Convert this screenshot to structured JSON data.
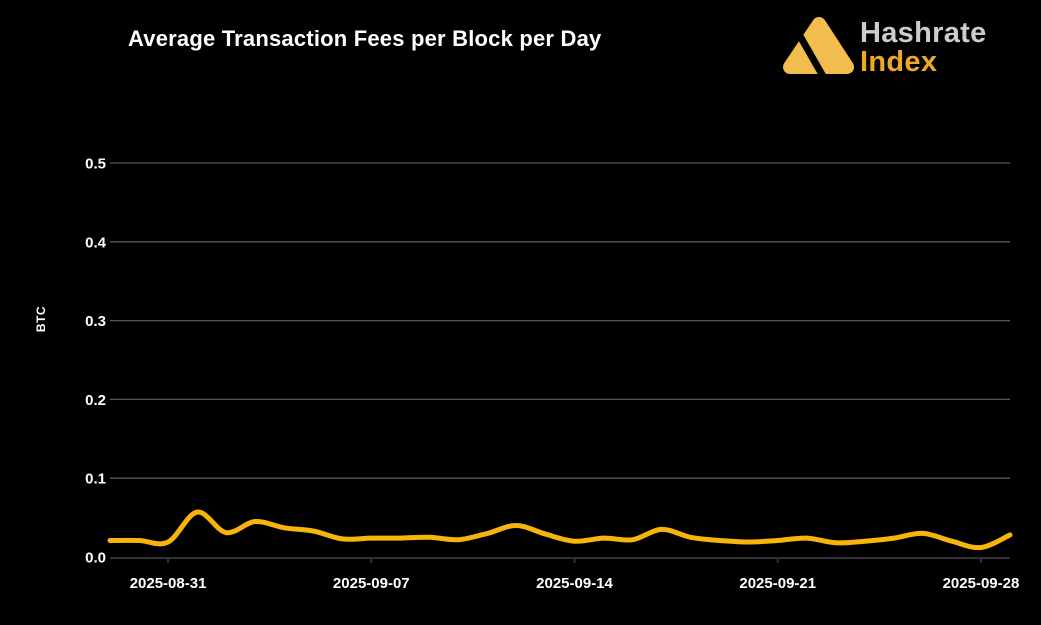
{
  "header": {
    "logo": {
      "brand_top": "Hashrate",
      "brand_bottom": "Index",
      "mark_color": "#f3bc4f",
      "brand_top_color": "#cdcdcd",
      "brand_bottom_color": "#eea826"
    }
  },
  "chart_data": {
    "type": "line",
    "title": "Average Transaction Fees per Block per Day",
    "xlabel": "",
    "ylabel": "BTC",
    "x": [
      "2025-08-29",
      "2025-08-30",
      "2025-08-31",
      "2025-09-01",
      "2025-09-02",
      "2025-09-03",
      "2025-09-04",
      "2025-09-05",
      "2025-09-06",
      "2025-09-07",
      "2025-09-08",
      "2025-09-09",
      "2025-09-10",
      "2025-09-11",
      "2025-09-12",
      "2025-09-13",
      "2025-09-14",
      "2025-09-15",
      "2025-09-16",
      "2025-09-17",
      "2025-09-18",
      "2025-09-19",
      "2025-09-20",
      "2025-09-21",
      "2025-09-22",
      "2025-09-23",
      "2025-09-24",
      "2025-09-25",
      "2025-09-26",
      "2025-09-27",
      "2025-09-28",
      "2025-09-29"
    ],
    "values": [
      0.021,
      0.021,
      0.019,
      0.057,
      0.031,
      0.045,
      0.037,
      0.033,
      0.023,
      0.024,
      0.024,
      0.025,
      0.022,
      0.03,
      0.04,
      0.029,
      0.02,
      0.024,
      0.022,
      0.035,
      0.025,
      0.021,
      0.019,
      0.021,
      0.024,
      0.018,
      0.02,
      0.024,
      0.03,
      0.02,
      0.012,
      0.028
    ],
    "ylim": [
      0,
      0.5
    ],
    "yticks": [
      "0.0",
      "0.1",
      "0.2",
      "0.3",
      "0.4",
      "0.5"
    ],
    "xticks": [
      {
        "label": "2025-08-31",
        "index": 2
      },
      {
        "label": "2025-09-07",
        "index": 9
      },
      {
        "label": "2025-09-14",
        "index": 16
      },
      {
        "label": "2025-09-21",
        "index": 23
      },
      {
        "label": "2025-09-28",
        "index": 30
      }
    ],
    "grid": true,
    "legend": "none",
    "colors": {
      "background": "#000000",
      "line": "#f7b50c",
      "gridline": "#575757",
      "axis_line": "#333333",
      "tick_text": "#ffffff"
    }
  }
}
